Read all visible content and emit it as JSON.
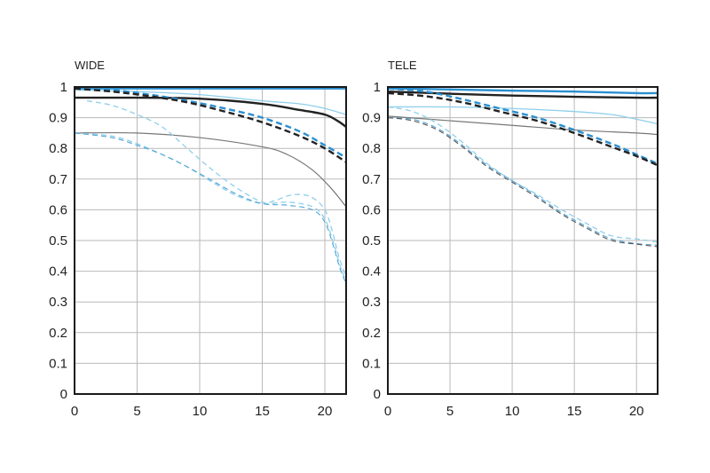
{
  "chart_data": [
    {
      "type": "line",
      "title": "WIDE",
      "xlim": [
        0,
        21.7
      ],
      "ylim": [
        0,
        1
      ],
      "x_ticks": [
        "0",
        "5",
        "10",
        "15",
        "20"
      ],
      "y_ticks": [
        "0",
        "0.1",
        "0.2",
        "0.3",
        "0.4",
        "0.5",
        "0.6",
        "0.7",
        "0.8",
        "0.9",
        "1"
      ],
      "grid": true,
      "series": [
        {
          "color": "#2b8fd0",
          "width": 2.4,
          "dash": false,
          "points": [
            [
              0,
              0.995
            ],
            [
              5,
              0.995
            ],
            [
              10,
              0.995
            ],
            [
              15,
              0.995
            ],
            [
              20,
              0.995
            ],
            [
              21.7,
              0.995
            ]
          ]
        },
        {
          "color": "#222222",
          "width": 2.4,
          "dash": false,
          "points": [
            [
              0,
              0.965
            ],
            [
              5,
              0.965
            ],
            [
              10,
              0.962
            ],
            [
              15,
              0.945
            ],
            [
              18,
              0.925
            ],
            [
              20,
              0.91
            ],
            [
              21,
              0.89
            ],
            [
              21.7,
              0.87
            ]
          ]
        },
        {
          "color": "#8fcfea",
          "width": 1.3,
          "dash": false,
          "points": [
            [
              0,
              0.99
            ],
            [
              5,
              0.985
            ],
            [
              10,
              0.975
            ],
            [
              15,
              0.955
            ],
            [
              18,
              0.945
            ],
            [
              20,
              0.93
            ],
            [
              21.7,
              0.91
            ]
          ]
        },
        {
          "color": "#2b8fd0",
          "width": 2.4,
          "dash": true,
          "points": [
            [
              0,
              0.995
            ],
            [
              3,
              0.99
            ],
            [
              6,
              0.975
            ],
            [
              9,
              0.955
            ],
            [
              12,
              0.93
            ],
            [
              15,
              0.9
            ],
            [
              18,
              0.855
            ],
            [
              20,
              0.81
            ],
            [
              21.7,
              0.77
            ]
          ]
        },
        {
          "color": "#222222",
          "width": 2.4,
          "dash": true,
          "points": [
            [
              0,
              0.995
            ],
            [
              3,
              0.985
            ],
            [
              6,
              0.97
            ],
            [
              9,
              0.95
            ],
            [
              12,
              0.92
            ],
            [
              15,
              0.885
            ],
            [
              18,
              0.84
            ],
            [
              20,
              0.8
            ],
            [
              21.7,
              0.755
            ]
          ]
        },
        {
          "color": "#777777",
          "width": 1.2,
          "dash": false,
          "points": [
            [
              0,
              0.85
            ],
            [
              5,
              0.85
            ],
            [
              10,
              0.835
            ],
            [
              15,
              0.805
            ],
            [
              17,
              0.78
            ],
            [
              19,
              0.73
            ],
            [
              20.5,
              0.67
            ],
            [
              21.7,
              0.61
            ]
          ]
        },
        {
          "color": "#8fcfea",
          "width": 1.3,
          "dash": true,
          "points": [
            [
              1,
              0.955
            ],
            [
              3,
              0.94
            ],
            [
              5,
              0.91
            ],
            [
              7,
              0.87
            ],
            [
              9,
              0.8
            ],
            [
              11,
              0.73
            ],
            [
              13,
              0.67
            ],
            [
              15,
              0.625
            ],
            [
              16,
              0.63
            ],
            [
              17,
              0.645
            ],
            [
              18,
              0.65
            ],
            [
              19,
              0.64
            ],
            [
              20,
              0.6
            ],
            [
              20.6,
              0.53
            ],
            [
              21.1,
              0.45
            ],
            [
              21.7,
              0.38
            ]
          ]
        },
        {
          "color": "#8fcfea",
          "width": 1.3,
          "dash": true,
          "points": [
            [
              0,
              0.85
            ],
            [
              3,
              0.84
            ],
            [
              5,
              0.815
            ],
            [
              7,
              0.78
            ],
            [
              9,
              0.74
            ],
            [
              11,
              0.69
            ],
            [
              13,
              0.645
            ],
            [
              15,
              0.62
            ],
            [
              17,
              0.625
            ],
            [
              19,
              0.61
            ],
            [
              20,
              0.57
            ],
            [
              20.7,
              0.49
            ],
            [
              21.2,
              0.42
            ],
            [
              21.7,
              0.365
            ]
          ]
        },
        {
          "color": "#5aa9d8",
          "width": 1.2,
          "dash": true,
          "points": [
            [
              0,
              0.85
            ],
            [
              3,
              0.835
            ],
            [
              5,
              0.81
            ],
            [
              7,
              0.78
            ],
            [
              9,
              0.74
            ],
            [
              11,
              0.695
            ],
            [
              13,
              0.65
            ],
            [
              15,
              0.62
            ],
            [
              17,
              0.615
            ],
            [
              19,
              0.6
            ],
            [
              20,
              0.56
            ],
            [
              20.7,
              0.48
            ],
            [
              21.2,
              0.41
            ],
            [
              21.7,
              0.36
            ]
          ]
        }
      ]
    },
    {
      "type": "line",
      "title": "TELE",
      "xlim": [
        0,
        21.7
      ],
      "ylim": [
        0,
        1
      ],
      "x_ticks": [
        "0",
        "5",
        "10",
        "15",
        "20"
      ],
      "y_ticks": [
        "0",
        "0.1",
        "0.2",
        "0.3",
        "0.4",
        "0.5",
        "0.6",
        "0.7",
        "0.8",
        "0.9",
        "1"
      ],
      "grid": true,
      "series": [
        {
          "color": "#2b8fd0",
          "width": 2.4,
          "dash": false,
          "points": [
            [
              0,
              0.995
            ],
            [
              5,
              0.992
            ],
            [
              10,
              0.988
            ],
            [
              15,
              0.985
            ],
            [
              20,
              0.98
            ],
            [
              21.7,
              0.98
            ]
          ]
        },
        {
          "color": "#222222",
          "width": 2.4,
          "dash": false,
          "points": [
            [
              0,
              0.985
            ],
            [
              5,
              0.978
            ],
            [
              10,
              0.972
            ],
            [
              15,
              0.968
            ],
            [
              20,
              0.965
            ],
            [
              21.7,
              0.965
            ]
          ]
        },
        {
          "color": "#8fcfea",
          "width": 1.3,
          "dash": false,
          "points": [
            [
              0,
              0.935
            ],
            [
              5,
              0.935
            ],
            [
              10,
              0.93
            ],
            [
              15,
              0.92
            ],
            [
              18,
              0.91
            ],
            [
              20,
              0.895
            ],
            [
              21.7,
              0.88
            ]
          ]
        },
        {
          "color": "#777777",
          "width": 1.2,
          "dash": false,
          "points": [
            [
              0,
              0.905
            ],
            [
              5,
              0.89
            ],
            [
              10,
              0.875
            ],
            [
              15,
              0.86
            ],
            [
              20,
              0.85
            ],
            [
              21.7,
              0.845
            ]
          ]
        },
        {
          "color": "#2b8fd0",
          "width": 2.4,
          "dash": true,
          "points": [
            [
              0,
              0.995
            ],
            [
              3,
              0.985
            ],
            [
              6,
              0.96
            ],
            [
              9,
              0.93
            ],
            [
              12,
              0.9
            ],
            [
              15,
              0.86
            ],
            [
              18,
              0.815
            ],
            [
              20,
              0.78
            ],
            [
              21.7,
              0.75
            ]
          ]
        },
        {
          "color": "#222222",
          "width": 2.4,
          "dash": true,
          "points": [
            [
              0,
              0.98
            ],
            [
              3,
              0.97
            ],
            [
              6,
              0.95
            ],
            [
              9,
              0.92
            ],
            [
              12,
              0.89
            ],
            [
              15,
              0.85
            ],
            [
              18,
              0.805
            ],
            [
              20,
              0.775
            ],
            [
              21.7,
              0.745
            ]
          ]
        },
        {
          "color": "#8fcfea",
          "width": 1.3,
          "dash": true,
          "points": [
            [
              0,
              0.935
            ],
            [
              2,
              0.92
            ],
            [
              4,
              0.88
            ],
            [
              6,
              0.82
            ],
            [
              8,
              0.75
            ],
            [
              10,
              0.695
            ],
            [
              12,
              0.65
            ],
            [
              14,
              0.6
            ],
            [
              16,
              0.555
            ],
            [
              18,
              0.515
            ],
            [
              20,
              0.505
            ],
            [
              21.7,
              0.495
            ]
          ]
        },
        {
          "color": "#5aa9d8",
          "width": 1.2,
          "dash": true,
          "points": [
            [
              0,
              0.9
            ],
            [
              2,
              0.895
            ],
            [
              4,
              0.865
            ],
            [
              6,
              0.81
            ],
            [
              8,
              0.745
            ],
            [
              10,
              0.695
            ],
            [
              12,
              0.645
            ],
            [
              14,
              0.59
            ],
            [
              16,
              0.545
            ],
            [
              18,
              0.505
            ],
            [
              20,
              0.49
            ],
            [
              21.7,
              0.485
            ]
          ]
        },
        {
          "color": "#555555",
          "width": 1.1,
          "dash": true,
          "points": [
            [
              0,
              0.9
            ],
            [
              2,
              0.89
            ],
            [
              4,
              0.86
            ],
            [
              6,
              0.805
            ],
            [
              8,
              0.74
            ],
            [
              10,
              0.69
            ],
            [
              12,
              0.64
            ],
            [
              14,
              0.585
            ],
            [
              16,
              0.54
            ],
            [
              18,
              0.5
            ],
            [
              20,
              0.488
            ],
            [
              21.7,
              0.48
            ]
          ]
        }
      ]
    }
  ]
}
